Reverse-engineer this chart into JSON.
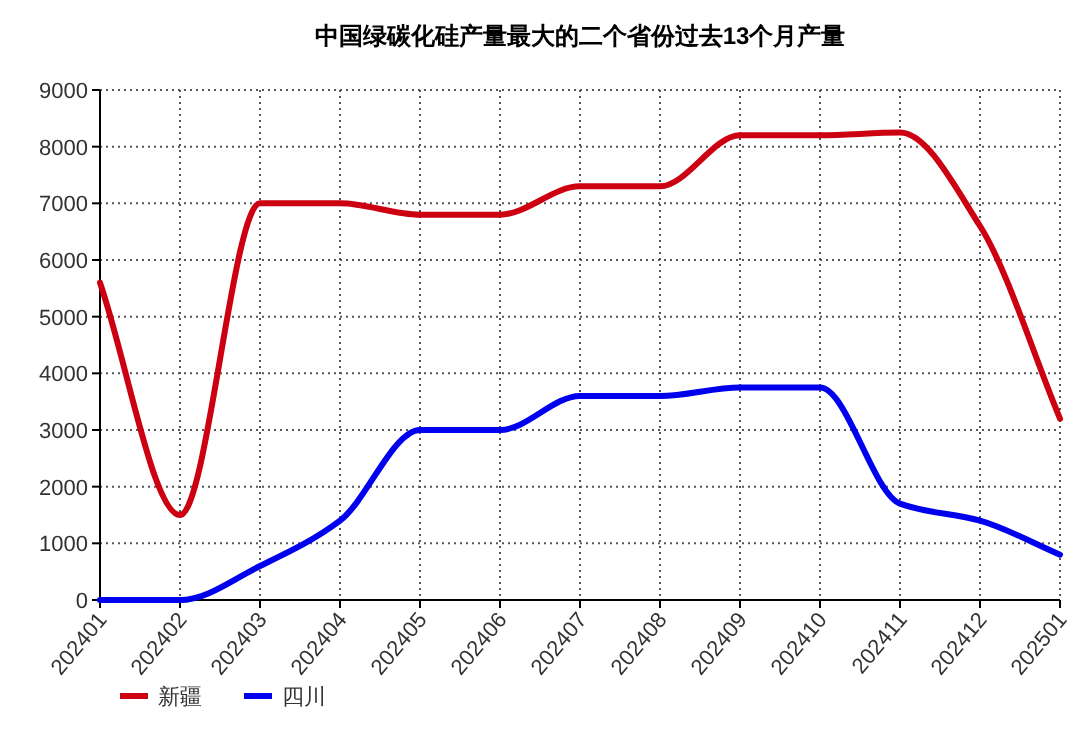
{
  "chart_data": {
    "type": "line",
    "title": "中国绿碳化硅产量最大的二个省份过去13个月产量",
    "categories": [
      "202401",
      "202402",
      "202403",
      "202404",
      "202405",
      "202406",
      "202407",
      "202408",
      "202409",
      "202410",
      "202411",
      "202412",
      "202501"
    ],
    "series": [
      {
        "name": "新疆",
        "color": "#cc0011",
        "values": [
          5600,
          1500,
          7000,
          7000,
          6800,
          6800,
          7300,
          7300,
          8200,
          8200,
          8250,
          6600,
          3200
        ]
      },
      {
        "name": "四川",
        "color": "#0000ee",
        "values": [
          0,
          0,
          600,
          1400,
          3000,
          3000,
          3600,
          3600,
          3750,
          3750,
          1700,
          1400,
          800
        ]
      }
    ],
    "ylim": [
      0,
      9000
    ],
    "yticks": [
      0,
      1000,
      2000,
      3000,
      4000,
      5000,
      6000,
      7000,
      8000,
      9000
    ],
    "grid": true,
    "legend": "bottom left"
  }
}
